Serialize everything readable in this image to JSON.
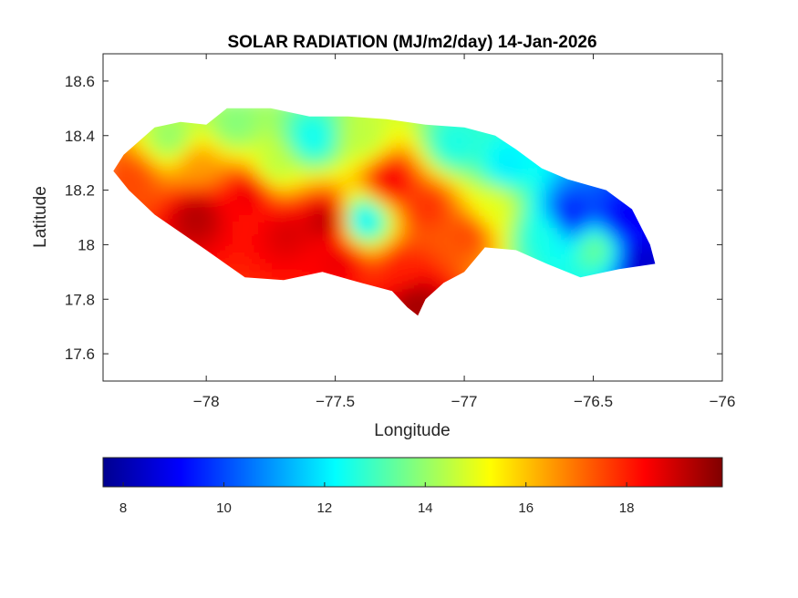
{
  "chart_data": {
    "type": "heatmap",
    "title": "SOLAR RADIATION (MJ/m2/day) 14-Jan-2026",
    "xlabel": "Longitude",
    "ylabel": "Latitude",
    "xlim": [
      -78.4,
      -76.0
    ],
    "ylim": [
      17.5,
      18.7
    ],
    "xticks": [
      -78,
      -77.5,
      -77,
      -76.5,
      -76
    ],
    "yticks": [
      17.6,
      17.8,
      18,
      18.2,
      18.4,
      18.6
    ],
    "colormap": "jet",
    "colorbar": {
      "location": "bottom",
      "range": [
        7.6,
        19.9
      ],
      "ticks": [
        8,
        10,
        12,
        14,
        16,
        18
      ]
    },
    "region_outline": [
      [
        -78.36,
        18.27
      ],
      [
        -78.32,
        18.33
      ],
      [
        -78.26,
        18.38
      ],
      [
        -78.2,
        18.43
      ],
      [
        -78.1,
        18.45
      ],
      [
        -78.0,
        18.44
      ],
      [
        -77.92,
        18.5
      ],
      [
        -77.75,
        18.5
      ],
      [
        -77.6,
        18.47
      ],
      [
        -77.45,
        18.47
      ],
      [
        -77.3,
        18.46
      ],
      [
        -77.15,
        18.44
      ],
      [
        -77.0,
        18.43
      ],
      [
        -76.88,
        18.4
      ],
      [
        -76.8,
        18.35
      ],
      [
        -76.7,
        18.28
      ],
      [
        -76.6,
        18.24
      ],
      [
        -76.45,
        18.2
      ],
      [
        -76.35,
        18.13
      ],
      [
        -76.28,
        18.0
      ],
      [
        -76.26,
        17.93
      ],
      [
        -76.4,
        17.91
      ],
      [
        -76.55,
        17.88
      ],
      [
        -76.68,
        17.93
      ],
      [
        -76.8,
        17.98
      ],
      [
        -76.92,
        17.99
      ],
      [
        -77.0,
        17.9
      ],
      [
        -77.08,
        17.86
      ],
      [
        -77.15,
        17.8
      ],
      [
        -77.18,
        17.74
      ],
      [
        -77.22,
        17.77
      ],
      [
        -77.28,
        17.83
      ],
      [
        -77.4,
        17.86
      ],
      [
        -77.55,
        17.9
      ],
      [
        -77.7,
        17.87
      ],
      [
        -77.85,
        17.88
      ],
      [
        -78.0,
        17.98
      ],
      [
        -78.2,
        18.11
      ],
      [
        -78.3,
        18.2
      ],
      [
        -78.36,
        18.27
      ]
    ],
    "field_points": [
      {
        "lon": -78.3,
        "lat": 18.25,
        "value": 17.5
      },
      {
        "lon": -78.15,
        "lat": 18.4,
        "value": 14.0
      },
      {
        "lon": -78.05,
        "lat": 18.12,
        "value": 19.3
      },
      {
        "lon": -78.05,
        "lat": 18.3,
        "value": 16.5
      },
      {
        "lon": -77.9,
        "lat": 18.45,
        "value": 13.8
      },
      {
        "lon": -77.85,
        "lat": 18.2,
        "value": 18.6
      },
      {
        "lon": -77.75,
        "lat": 18.3,
        "value": 14.5
      },
      {
        "lon": -77.7,
        "lat": 18.05,
        "value": 18.8
      },
      {
        "lon": -77.6,
        "lat": 18.4,
        "value": 12.3
      },
      {
        "lon": -77.55,
        "lat": 18.1,
        "value": 19.2
      },
      {
        "lon": -77.5,
        "lat": 17.95,
        "value": 18.6
      },
      {
        "lon": -77.4,
        "lat": 18.4,
        "value": 14.5
      },
      {
        "lon": -77.4,
        "lat": 18.1,
        "value": 12.0
      },
      {
        "lon": -77.3,
        "lat": 18.25,
        "value": 18.5
      },
      {
        "lon": -77.25,
        "lat": 17.92,
        "value": 18.0
      },
      {
        "lon": -77.2,
        "lat": 17.8,
        "value": 19.5
      },
      {
        "lon": -77.15,
        "lat": 18.15,
        "value": 17.8
      },
      {
        "lon": -77.05,
        "lat": 18.38,
        "value": 12.5
      },
      {
        "lon": -77.0,
        "lat": 18.05,
        "value": 17.5
      },
      {
        "lon": -76.9,
        "lat": 18.15,
        "value": 15.0
      },
      {
        "lon": -76.85,
        "lat": 18.3,
        "value": 12.0
      },
      {
        "lon": -76.7,
        "lat": 18.05,
        "value": 12.5
      },
      {
        "lon": -76.6,
        "lat": 18.12,
        "value": 9.5
      },
      {
        "lon": -76.5,
        "lat": 18.0,
        "value": 13.5
      },
      {
        "lon": -76.4,
        "lat": 18.1,
        "value": 9.0
      },
      {
        "lon": -76.32,
        "lat": 17.95,
        "value": 8.5
      }
    ]
  }
}
